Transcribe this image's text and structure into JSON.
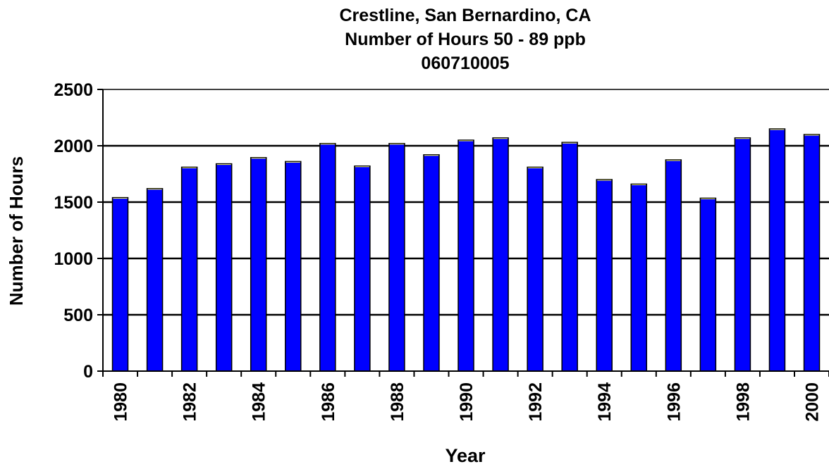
{
  "chart_data": {
    "type": "bar",
    "title": "Crestline, San Bernardino, CA",
    "subtitle": "Number of Hours 50 - 89 ppb",
    "site_id": "060710005",
    "xlabel": "Year",
    "ylabel": "Number of Hours",
    "categories": [
      "1980",
      "1981",
      "1982",
      "1983",
      "1984",
      "1985",
      "1986",
      "1987",
      "1988",
      "1989",
      "1990",
      "1991",
      "1992",
      "1993",
      "1994",
      "1995",
      "1996",
      "1997",
      "1998",
      "1999",
      "2000"
    ],
    "x_tick_labels": [
      "1980",
      "1982",
      "1984",
      "1986",
      "1988",
      "1990",
      "1992",
      "1994",
      "1996",
      "1998",
      "2000"
    ],
    "values": [
      1540,
      1620,
      1810,
      1840,
      1895,
      1860,
      2020,
      1820,
      2020,
      1920,
      2050,
      2070,
      1810,
      2030,
      1700,
      1660,
      1875,
      1535,
      2070,
      2150,
      2100
    ],
    "ylim": [
      0,
      2500
    ],
    "yticks": [
      0,
      500,
      1000,
      1500,
      2000,
      2500
    ],
    "grid": true,
    "legend": "none",
    "colors": {
      "bar_fill": "#0000ff",
      "bar_stroke": "#000000",
      "bar_edge_highlight": "#ffff66",
      "gridline": "#000000",
      "axis": "#000000"
    }
  }
}
